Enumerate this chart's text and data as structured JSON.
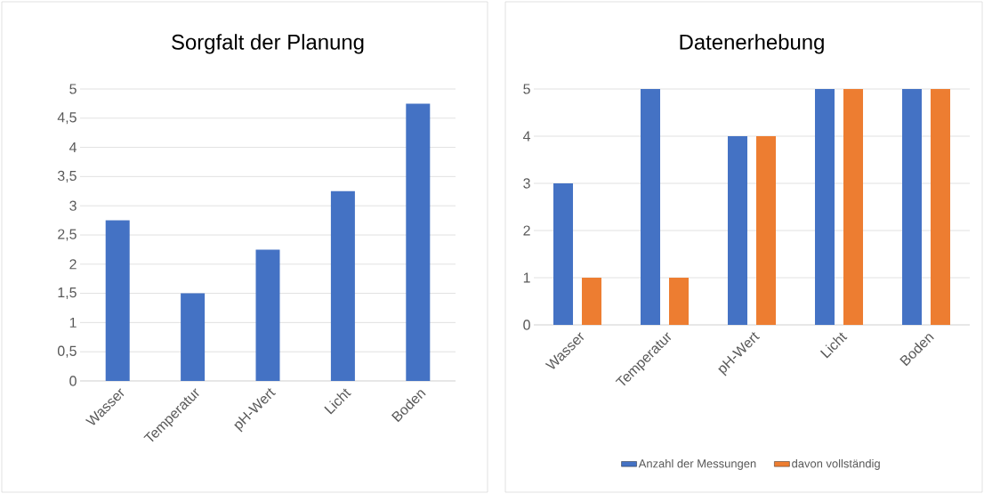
{
  "chart_data": [
    {
      "type": "bar",
      "title": "Sorgfalt der Planung",
      "categories": [
        "Wasser",
        "Temperatur",
        "pH-Wert",
        "Licht",
        "Boden"
      ],
      "values": [
        2.75,
        1.5,
        2.25,
        3.25,
        4.75
      ],
      "color": "#4472c4",
      "ylim": [
        0,
        5
      ],
      "yticks": [
        0,
        {
          "value": 0.5,
          "label": "0,5"
        },
        1,
        {
          "value": 1.5,
          "label": "1,5"
        },
        2,
        {
          "value": 2.5,
          "label": "2,5"
        },
        3,
        {
          "value": 3.5,
          "label": "3,5"
        },
        4,
        {
          "value": 4.5,
          "label": "4,5"
        },
        5
      ],
      "grid": "y"
    },
    {
      "type": "bar",
      "title": "Datenerhebung",
      "categories": [
        "Wasser",
        "Temperatur",
        "pH-Wert",
        "Licht",
        "Boden"
      ],
      "series": [
        {
          "name": "Anzahl der Messungen",
          "color": "#4472c4",
          "values": [
            3,
            5,
            4,
            5,
            5
          ]
        },
        {
          "name": "davon vollständig",
          "color": "#ed7d31",
          "values": [
            1,
            1,
            4,
            5,
            5
          ]
        }
      ],
      "ylim": [
        0,
        5
      ],
      "yticks": [
        0,
        1,
        2,
        3,
        4,
        5
      ],
      "grid": "y",
      "legend": "bottom"
    }
  ]
}
